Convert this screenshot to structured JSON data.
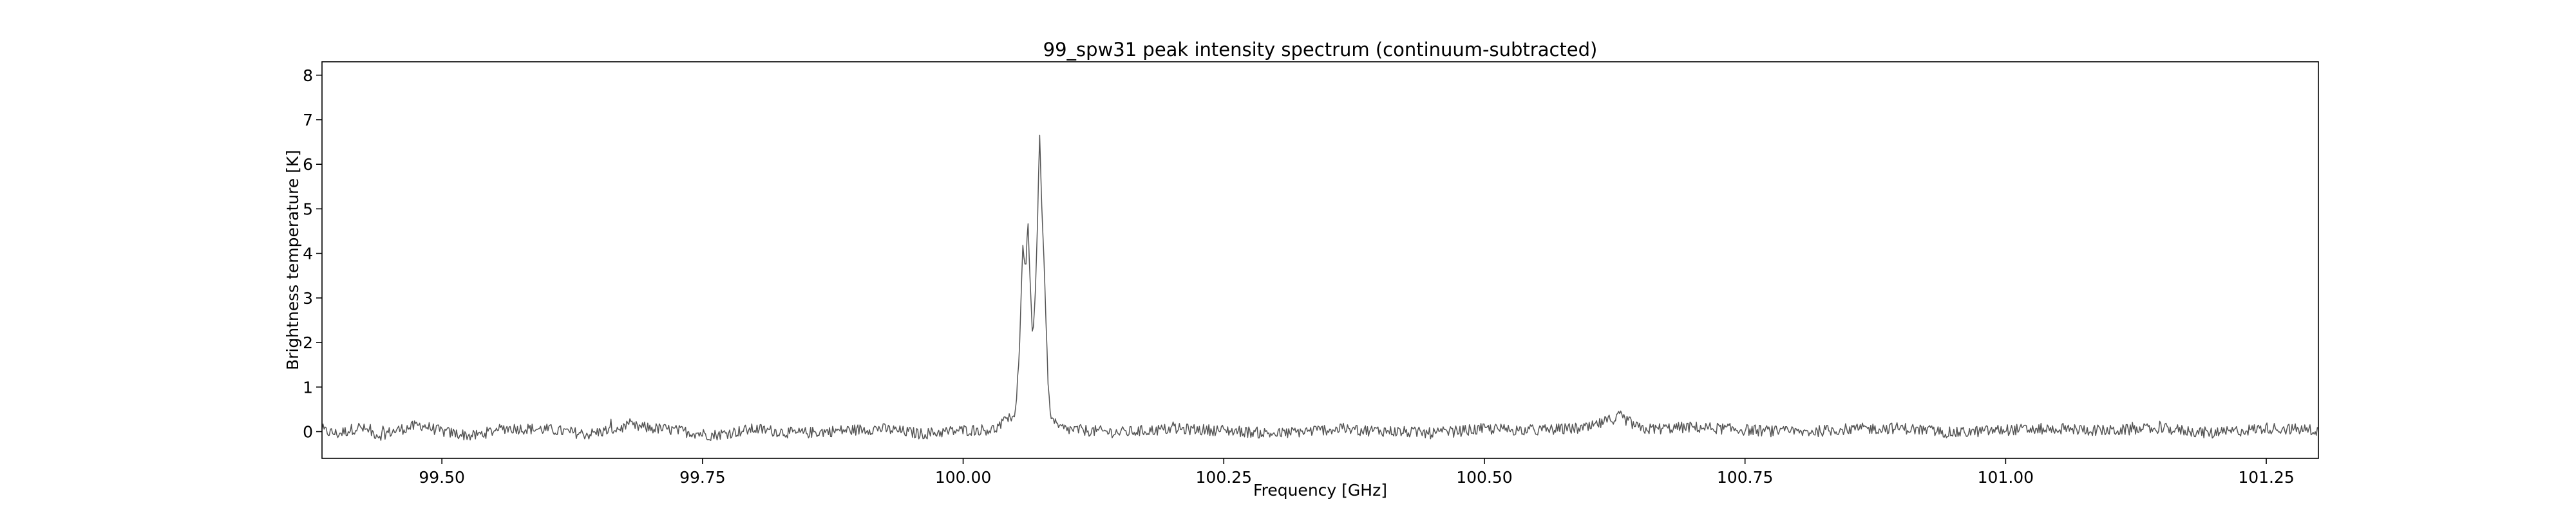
{
  "chart_data": {
    "type": "line",
    "title": "99_spw31 peak intensity spectrum (continuum-subtracted)",
    "xlabel": "Frequency [GHz]",
    "ylabel": "Brightness temperature [K]",
    "xlim": [
      99.385,
      101.3
    ],
    "ylim": [
      -0.6,
      8.3
    ],
    "x_ticks": [
      99.5,
      99.75,
      100.0,
      100.25,
      100.5,
      100.75,
      101.0,
      101.25
    ],
    "x_tick_labels": [
      "99.50",
      "99.75",
      "100.00",
      "100.25",
      "100.50",
      "100.75",
      "101.00",
      "101.25"
    ],
    "y_ticks": [
      0,
      1,
      2,
      3,
      4,
      5,
      6,
      7,
      8
    ],
    "y_tick_labels": [
      "0",
      "1",
      "2",
      "3",
      "4",
      "5",
      "6",
      "7",
      "8"
    ],
    "grid": false,
    "legend": "none",
    "line_color": "#555555",
    "noise_rms": 0.08,
    "features": [
      {
        "x": 100.05,
        "y": 0.4
      },
      {
        "x": 100.057,
        "y": 4.2
      },
      {
        "x": 100.062,
        "y": 4.9
      },
      {
        "x": 100.066,
        "y": 2.3
      },
      {
        "x": 100.07,
        "y": 3.5
      },
      {
        "x": 100.073,
        "y": 6.8
      },
      {
        "x": 100.076,
        "y": 4.5
      },
      {
        "x": 100.079,
        "y": 2.6
      },
      {
        "x": 100.082,
        "y": 0.8
      },
      {
        "x": 100.63,
        "y": 0.35
      }
    ],
    "series": [
      {
        "x": [
          99.385,
          99.4,
          99.42,
          99.44,
          99.46,
          99.48,
          99.5,
          99.53,
          99.56,
          99.6,
          99.64,
          99.68,
          99.72,
          99.76,
          99.8,
          99.84,
          99.88,
          99.92,
          99.96,
          100.0,
          100.03,
          100.045,
          100.05,
          100.054,
          100.057,
          100.06,
          100.062,
          100.064,
          100.066,
          100.068,
          100.07,
          100.072,
          100.073,
          100.075,
          100.076,
          100.078,
          100.079,
          100.081,
          100.082,
          100.085,
          100.09,
          100.1,
          100.15,
          100.2,
          100.25,
          100.3,
          100.35,
          100.4,
          100.45,
          100.5,
          100.55,
          100.6,
          100.63,
          100.65,
          100.7,
          100.75,
          100.8,
          100.85,
          100.9,
          100.95,
          101.0,
          101.05,
          101.1,
          101.15,
          101.2,
          101.25,
          101.3
        ],
        "y": [
          0.02,
          -0.05,
          0.1,
          -0.08,
          0.05,
          0.15,
          0.0,
          -0.1,
          0.08,
          0.05,
          -0.06,
          0.12,
          0.04,
          -0.08,
          0.06,
          -0.04,
          0.02,
          0.07,
          -0.05,
          0.03,
          0.05,
          0.3,
          0.4,
          1.8,
          4.2,
          3.6,
          4.9,
          3.5,
          2.3,
          2.5,
          3.5,
          5.3,
          6.8,
          5.6,
          4.5,
          3.8,
          2.6,
          1.5,
          0.8,
          0.3,
          0.1,
          0.05,
          -0.02,
          0.06,
          0.03,
          -0.05,
          0.05,
          0.02,
          -0.04,
          0.06,
          0.03,
          0.08,
          0.35,
          0.05,
          0.1,
          0.04,
          -0.02,
          0.06,
          0.08,
          -0.03,
          0.04,
          0.06,
          0.02,
          0.07,
          -0.04,
          0.08,
          0.03
        ]
      }
    ]
  }
}
